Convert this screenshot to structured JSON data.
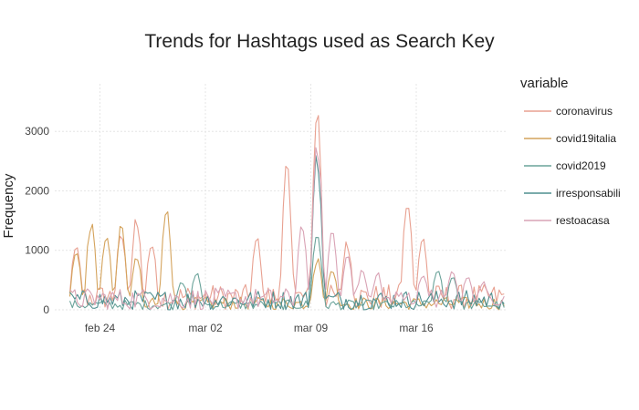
{
  "chart_data": {
    "type": "line",
    "title": "Trends for Hashtags used as Search Key",
    "xlabel": "",
    "ylabel": "Frequency",
    "x_range": [
      "2020-02-21",
      "2020-03-22"
    ],
    "x_ticks": [
      {
        "label": "feb 24",
        "date": "2020-02-24"
      },
      {
        "label": "mar 02",
        "date": "2020-03-02"
      },
      {
        "label": "mar 09",
        "date": "2020-03-09"
      },
      {
        "label": "mar 16",
        "date": "2020-03-16"
      }
    ],
    "ylim": [
      0,
      3800
    ],
    "y_ticks": [
      0,
      1000,
      2000,
      3000
    ],
    "grid": true,
    "legend_title": "variable",
    "legend_position": "right",
    "series": [
      {
        "name": "coronavirus",
        "color": "#e8a090",
        "peaks": [
          {
            "date": "2020-02-22",
            "value": 1100
          },
          {
            "date": "2020-02-25",
            "value": 1400
          },
          {
            "date": "2020-02-26",
            "value": 1600
          },
          {
            "date": "2020-02-27",
            "value": 1200
          },
          {
            "date": "2020-03-05",
            "value": 1250
          },
          {
            "date": "2020-03-07",
            "value": 2500
          },
          {
            "date": "2020-03-09",
            "value": 3550
          },
          {
            "date": "2020-03-11",
            "value": 1200
          },
          {
            "date": "2020-03-15",
            "value": 1900
          },
          {
            "date": "2020-03-16",
            "value": 1300
          }
        ]
      },
      {
        "name": "covid19italia",
        "color": "#d4a35c",
        "peaks": [
          {
            "date": "2020-02-22",
            "value": 1000
          },
          {
            "date": "2020-02-23",
            "value": 1520
          },
          {
            "date": "2020-02-24",
            "value": 1380
          },
          {
            "date": "2020-02-25",
            "value": 1500
          },
          {
            "date": "2020-02-26",
            "value": 950
          },
          {
            "date": "2020-02-28",
            "value": 1780
          },
          {
            "date": "2020-03-09",
            "value": 900
          },
          {
            "date": "2020-03-10",
            "value": 700
          }
        ]
      },
      {
        "name": "covid2019",
        "color": "#6aa39a",
        "peaks": [
          {
            "date": "2020-02-29",
            "value": 520
          },
          {
            "date": "2020-03-01",
            "value": 650
          },
          {
            "date": "2020-03-09",
            "value": 1380
          },
          {
            "date": "2020-03-17",
            "value": 700
          },
          {
            "date": "2020-03-18",
            "value": 600
          }
        ]
      },
      {
        "name": "irresponsabili",
        "color": "#4f8f8f",
        "peaks": [
          {
            "date": "2020-03-09",
            "value": 2750
          }
        ]
      },
      {
        "name": "restoacasa",
        "color": "#d9a3b5",
        "peaks": [
          {
            "date": "2020-03-08",
            "value": 1450
          },
          {
            "date": "2020-03-09",
            "value": 3050
          },
          {
            "date": "2020-03-10",
            "value": 1400
          },
          {
            "date": "2020-03-11",
            "value": 1000
          },
          {
            "date": "2020-03-12",
            "value": 700
          },
          {
            "date": "2020-03-13",
            "value": 650
          },
          {
            "date": "2020-03-16",
            "value": 650
          },
          {
            "date": "2020-03-18",
            "value": 700
          },
          {
            "date": "2020-03-19",
            "value": 600
          },
          {
            "date": "2020-03-20",
            "value": 500
          }
        ]
      }
    ]
  }
}
